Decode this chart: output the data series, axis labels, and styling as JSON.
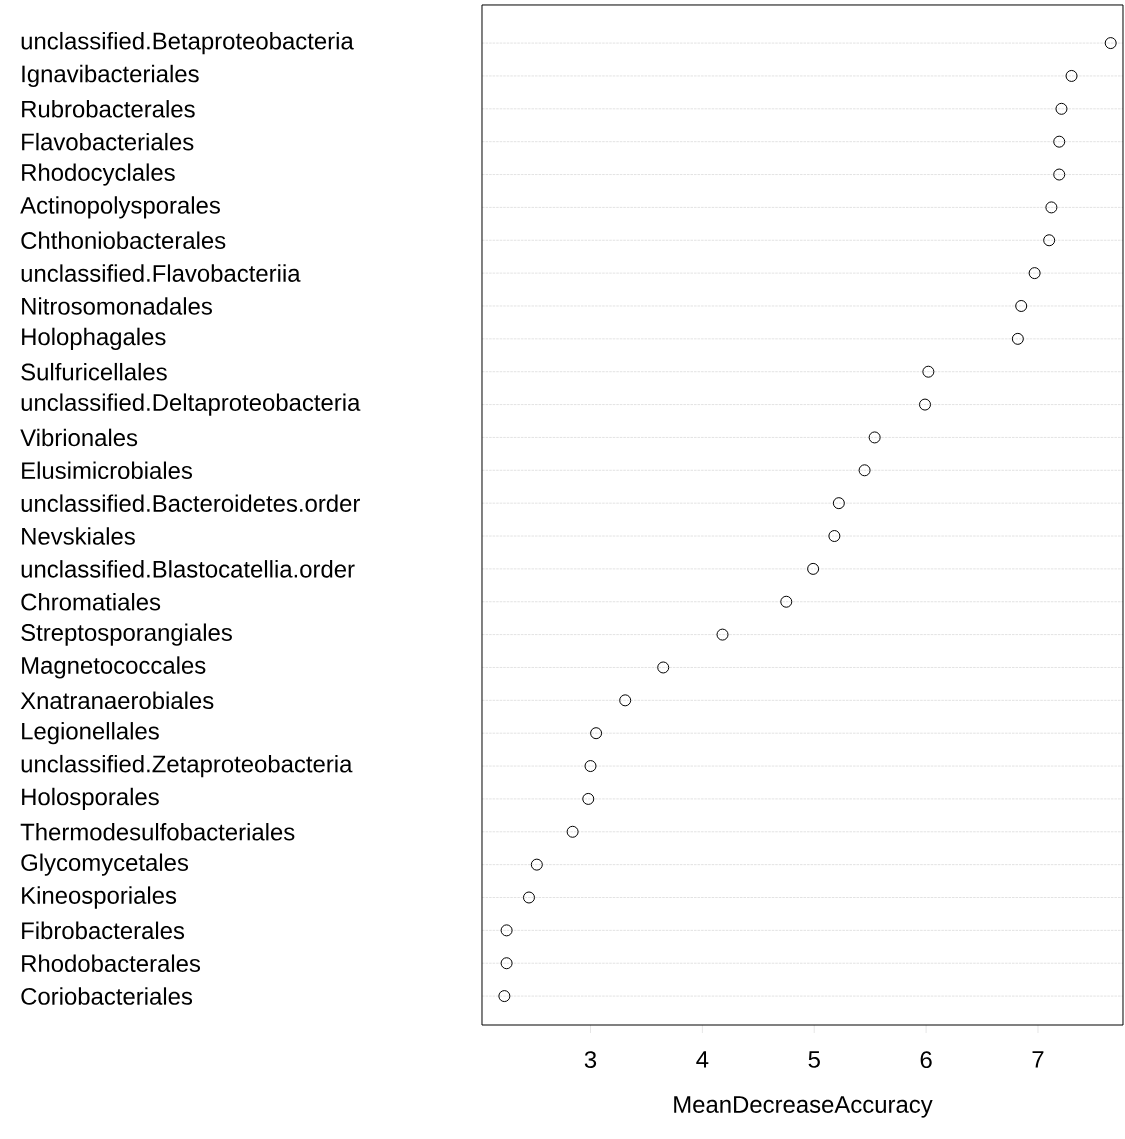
{
  "chart_data": {
    "type": "scatter",
    "orientation": "horizontal",
    "xlabel": "MeanDecreaseAccuracy",
    "categories": [
      "unclassified.Betaproteobacteria",
      "Ignavibacteriales",
      "Rubrobacterales",
      "Flavobacteriales",
      "Rhodocyclales",
      "Actinopolysporales",
      "Chthoniobacterales",
      "unclassified.Flavobacteriia",
      "Nitrosomonadales",
      "Holophagales",
      "Sulfuricellales",
      "unclassified.Deltaproteobacteria",
      "Vibrionales",
      "Elusimicrobiales",
      "unclassified.Bacteroidetes.order",
      "Nevskiales",
      "unclassified.Blastocatellia.order",
      "Chromatiales",
      "Streptosporangiales",
      "Magnetococcales",
      "Xnatranaerobiales",
      "Legionellales",
      "unclassified.Zetaproteobacteria",
      "Holosporales",
      "Thermodesulfobacteriales",
      "Glycomycetales",
      "Kineosporiales",
      "Fibrobacterales",
      "Rhodobacterales",
      "Coriobacteriales"
    ],
    "values": [
      7.65,
      7.3,
      7.21,
      7.19,
      7.19,
      7.12,
      7.1,
      6.97,
      6.85,
      6.82,
      6.02,
      5.99,
      5.54,
      5.45,
      5.22,
      5.18,
      4.99,
      4.75,
      4.18,
      3.65,
      3.31,
      3.05,
      3.0,
      2.98,
      2.84,
      2.52,
      2.45,
      2.25,
      2.25,
      2.23
    ],
    "color": "#000000",
    "marker": "circle",
    "grid": "y",
    "xlim": [
      2.03,
      7.76
    ],
    "xticks": [
      3,
      4,
      5,
      6,
      7
    ]
  }
}
